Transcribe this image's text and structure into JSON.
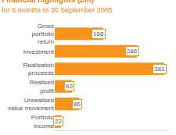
{
  "chart_data": {
    "type": "bar",
    "orientation": "horizontal",
    "title": "Financial highlights (£m)",
    "subtitle": "for 6 months to 30 September 2005",
    "categories": [
      "Gross portfolio return",
      "Investment",
      "Realisation proceeds",
      "Realised profit",
      "Unrealised value movement",
      "Portfolio income"
    ],
    "values": [
      168,
      286,
      381,
      60,
      86,
      22
    ],
    "color": "#f7941d",
    "xlim": [
      0,
      400
    ],
    "data_labels": true,
    "tick_labels": "y",
    "grid": false
  }
}
